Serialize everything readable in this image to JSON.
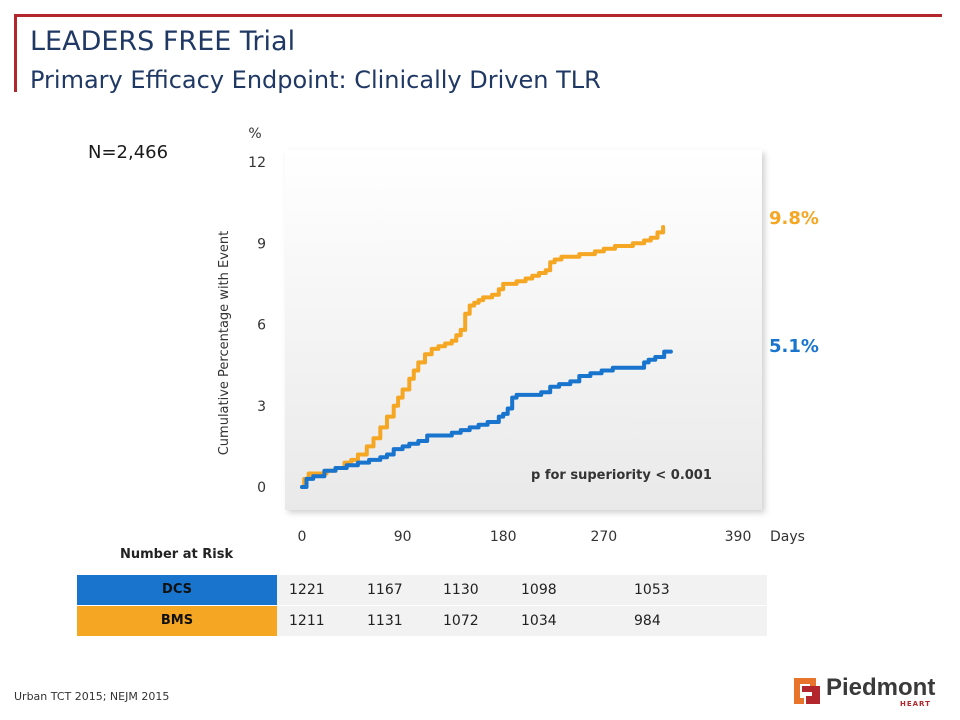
{
  "header": {
    "title": "LEADERS FREE Trial",
    "subtitle": "Primary Efficacy Endpoint: Clinically Driven TLR"
  },
  "sample_size": "N=2,466",
  "footer": {
    "citation": "Urban TCT 2015; NEJM 2015"
  },
  "logo": {
    "name": "Piedmont",
    "sub": "HEART",
    "icon": "piedmont-logo-icon"
  },
  "colors": {
    "dcs": "#1874cd",
    "bms": "#f5a623",
    "frame": "#b3262b",
    "title": "#1f3864"
  },
  "chart_data": {
    "type": "line",
    "title": "",
    "xlabel": "Days",
    "ylabel": "Cumulative Percentage with Event",
    "yunit": "%",
    "xlim": [
      0,
      390
    ],
    "ylim": [
      0,
      12
    ],
    "xticks": [
      0,
      90,
      180,
      270,
      390
    ],
    "yticks": [
      0,
      3,
      6,
      9,
      12
    ],
    "grid": false,
    "annotation": "p  for superiority < 0.001",
    "series": [
      {
        "name": "BMS",
        "color": "#f5a623",
        "end_label": "9.8%",
        "points": [
          [
            0,
            0
          ],
          [
            2,
            0.3
          ],
          [
            6,
            0.5
          ],
          [
            14,
            0.5
          ],
          [
            22,
            0.6
          ],
          [
            30,
            0.7
          ],
          [
            38,
            0.9
          ],
          [
            44,
            1.0
          ],
          [
            50,
            1.2
          ],
          [
            58,
            1.5
          ],
          [
            64,
            1.8
          ],
          [
            70,
            2.2
          ],
          [
            76,
            2.6
          ],
          [
            82,
            3.0
          ],
          [
            86,
            3.3
          ],
          [
            90,
            3.6
          ],
          [
            96,
            4.0
          ],
          [
            100,
            4.3
          ],
          [
            104,
            4.6
          ],
          [
            110,
            4.9
          ],
          [
            116,
            5.1
          ],
          [
            122,
            5.2
          ],
          [
            128,
            5.3
          ],
          [
            134,
            5.4
          ],
          [
            138,
            5.6
          ],
          [
            142,
            5.8
          ],
          [
            146,
            6.4
          ],
          [
            150,
            6.7
          ],
          [
            154,
            6.8
          ],
          [
            158,
            6.9
          ],
          [
            162,
            7.0
          ],
          [
            170,
            7.1
          ],
          [
            176,
            7.3
          ],
          [
            180,
            7.5
          ],
          [
            186,
            7.5
          ],
          [
            192,
            7.6
          ],
          [
            200,
            7.7
          ],
          [
            206,
            7.8
          ],
          [
            212,
            7.9
          ],
          [
            218,
            8.0
          ],
          [
            222,
            8.3
          ],
          [
            226,
            8.4
          ],
          [
            232,
            8.5
          ],
          [
            240,
            8.5
          ],
          [
            248,
            8.6
          ],
          [
            256,
            8.6
          ],
          [
            262,
            8.7
          ],
          [
            270,
            8.8
          ],
          [
            280,
            8.9
          ],
          [
            290,
            8.9
          ],
          [
            296,
            9.0
          ],
          [
            302,
            9.0
          ],
          [
            306,
            9.1
          ],
          [
            312,
            9.2
          ],
          [
            318,
            9.4
          ],
          [
            323,
            9.6
          ]
        ]
      },
      {
        "name": "DCS",
        "color": "#1874cd",
        "end_label": "5.1%",
        "points": [
          [
            0,
            0
          ],
          [
            4,
            0.3
          ],
          [
            10,
            0.4
          ],
          [
            20,
            0.6
          ],
          [
            30,
            0.7
          ],
          [
            40,
            0.8
          ],
          [
            50,
            0.9
          ],
          [
            60,
            1.0
          ],
          [
            70,
            1.1
          ],
          [
            76,
            1.2
          ],
          [
            82,
            1.4
          ],
          [
            90,
            1.5
          ],
          [
            96,
            1.6
          ],
          [
            104,
            1.7
          ],
          [
            112,
            1.9
          ],
          [
            124,
            1.9
          ],
          [
            134,
            2.0
          ],
          [
            142,
            2.1
          ],
          [
            150,
            2.2
          ],
          [
            158,
            2.3
          ],
          [
            166,
            2.4
          ],
          [
            176,
            2.6
          ],
          [
            180,
            2.7
          ],
          [
            184,
            2.9
          ],
          [
            188,
            3.3
          ],
          [
            192,
            3.4
          ],
          [
            206,
            3.4
          ],
          [
            214,
            3.5
          ],
          [
            222,
            3.7
          ],
          [
            230,
            3.8
          ],
          [
            240,
            3.9
          ],
          [
            248,
            4.1
          ],
          [
            258,
            4.2
          ],
          [
            268,
            4.3
          ],
          [
            278,
            4.4
          ],
          [
            292,
            4.4
          ],
          [
            300,
            4.4
          ],
          [
            306,
            4.6
          ],
          [
            310,
            4.7
          ],
          [
            316,
            4.8
          ],
          [
            324,
            5.0
          ],
          [
            330,
            5.0
          ]
        ]
      }
    ],
    "risk_table": {
      "heading": "Number at Risk",
      "rows": [
        {
          "name": "DCS",
          "color": "#1874cd",
          "values": [
            "1221",
            "1167",
            "1130",
            "1098",
            "1053"
          ]
        },
        {
          "name": "BMS",
          "color": "#f5a623",
          "values": [
            "1211",
            "1131",
            "1072",
            "1034",
            "984"
          ]
        }
      ]
    }
  }
}
